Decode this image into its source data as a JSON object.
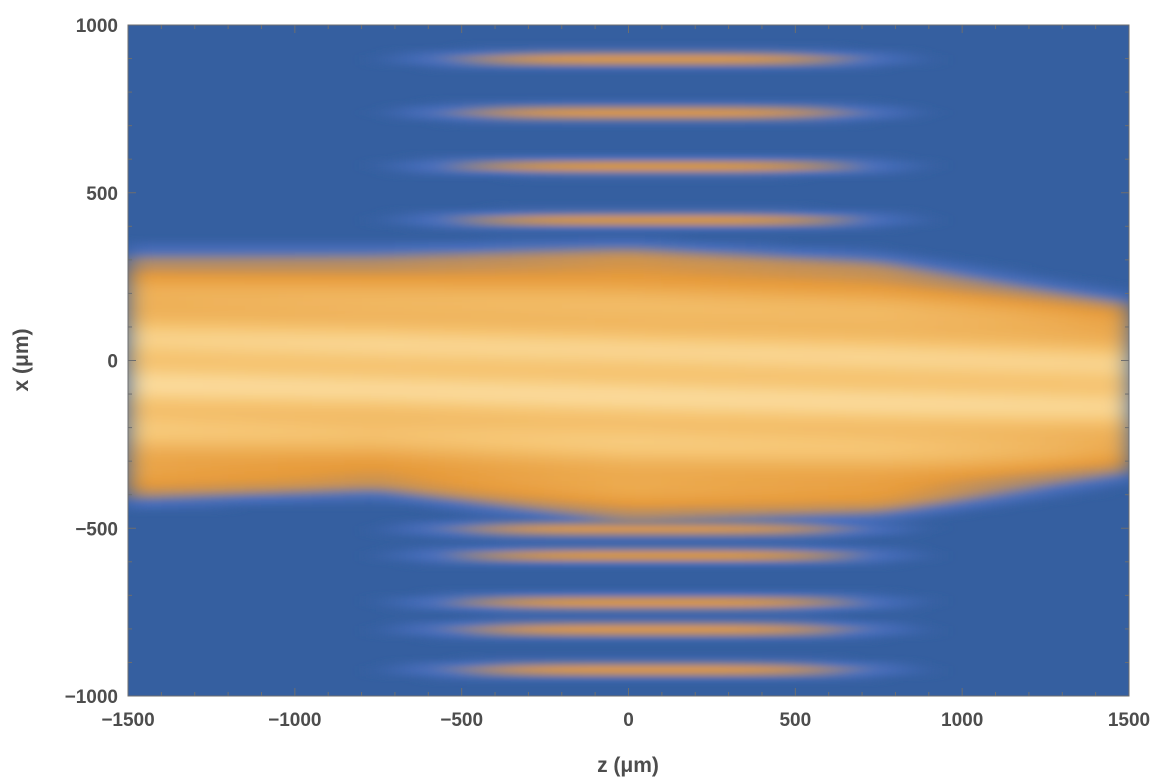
{
  "chart_data": {
    "type": "heatmap",
    "title": "",
    "xlabel": "z (μm)",
    "ylabel": "x (μm)",
    "xlim": [
      -1500,
      1500
    ],
    "ylim": [
      -1000,
      1000
    ],
    "x_ticks": [
      -1500,
      -1000,
      -500,
      0,
      500,
      1000,
      1500
    ],
    "y_ticks": [
      -1000,
      -500,
      0,
      500,
      1000
    ],
    "x_tick_labels": [
      "−1500",
      "−1000",
      "−500",
      "0",
      "500",
      "1000",
      "1500"
    ],
    "y_tick_labels": [
      "−1000",
      "−500",
      "0",
      "500",
      "1000"
    ],
    "colormap": [
      "#2f5a96",
      "#4a70c0",
      "#e69a3a",
      "#f6c675",
      "#fff2c8"
    ],
    "grid": false,
    "legend": "none",
    "central_band": {
      "z": [
        -1500,
        -750,
        0,
        750,
        1500
      ],
      "x_top": [
        280,
        280,
        300,
        260,
        140
      ],
      "x_bottom": [
        -380,
        -350,
        -450,
        -420,
        -300
      ]
    },
    "side_fringes_x": [
      -920,
      -800,
      -720,
      -580,
      -500,
      420,
      580,
      740,
      900
    ],
    "side_fringes_z_range": [
      -650,
      800
    ]
  }
}
